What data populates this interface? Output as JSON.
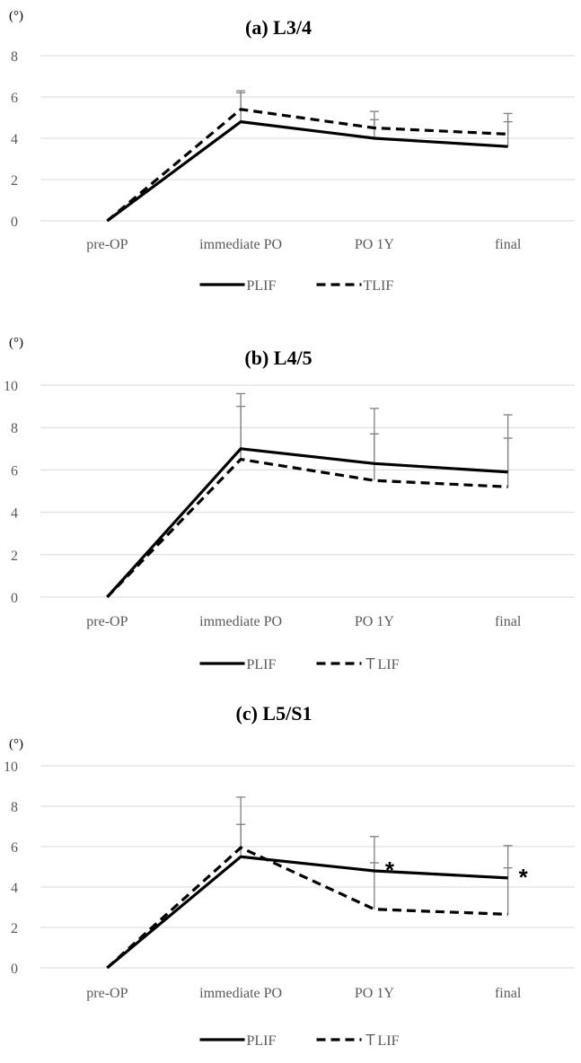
{
  "chart_data": [
    {
      "type": "line",
      "title": "(a)  L3/4",
      "unit_label": "(°)",
      "categories": [
        "pre-OP",
        "immediate PO",
        "PO 1Y",
        "final"
      ],
      "ylim": [
        0,
        8
      ],
      "yticks": [
        "0",
        "2",
        "4",
        "6",
        "8"
      ],
      "grid": "horizontal",
      "legend": "bottom",
      "series": [
        {
          "name": "PLIF",
          "style": "solid",
          "values": [
            0,
            4.8,
            4.0,
            3.6
          ],
          "error_upper": [
            null,
            6.2,
            4.9,
            4.8
          ]
        },
        {
          "name": "TLIF",
          "style": "dashed",
          "values": [
            0,
            5.4,
            4.5,
            4.2
          ],
          "error_upper": [
            null,
            6.3,
            5.3,
            5.2
          ]
        }
      ],
      "annotations": []
    },
    {
      "type": "line",
      "title": "(b) L4/5",
      "unit_label": "(°)",
      "categories": [
        "pre-OP",
        "immediate PO",
        "PO 1Y",
        "final"
      ],
      "ylim": [
        0,
        10
      ],
      "yticks": [
        "0",
        "2",
        "4",
        "6",
        "8",
        "10"
      ],
      "grid": "horizontal",
      "legend": "bottom",
      "series": [
        {
          "name": "PLIF",
          "style": "solid",
          "values": [
            0,
            7.0,
            6.3,
            5.9
          ],
          "error_upper": [
            null,
            9.6,
            8.9,
            8.6
          ]
        },
        {
          "name": "ＴLIF",
          "style": "dashed",
          "values": [
            0,
            6.5,
            5.5,
            5.2
          ],
          "error_upper": [
            null,
            9.0,
            7.7,
            7.5
          ]
        }
      ],
      "annotations": []
    },
    {
      "type": "line",
      "title": "(c) L5/S1",
      "unit_label": "(°)",
      "categories": [
        "pre-OP",
        "immediate PO",
        "PO 1Y",
        "final"
      ],
      "ylim": [
        0,
        10
      ],
      "yticks": [
        "0",
        "2",
        "4",
        "6",
        "8",
        "10"
      ],
      "grid": "horizontal",
      "legend": "bottom",
      "series": [
        {
          "name": "PLIF",
          "style": "solid",
          "values": [
            0,
            5.5,
            4.8,
            4.45
          ],
          "error_upper": [
            null,
            7.1,
            6.5,
            6.05
          ]
        },
        {
          "name": "ＴLIF",
          "style": "dashed",
          "values": [
            0,
            5.95,
            2.9,
            2.65
          ],
          "error_upper": [
            null,
            8.45,
            5.2,
            4.95
          ]
        }
      ],
      "annotations": [
        {
          "text": "*",
          "category": "PO 1Y",
          "value": 4.8
        },
        {
          "text": "*",
          "category": "final",
          "value": 4.45
        }
      ]
    }
  ]
}
